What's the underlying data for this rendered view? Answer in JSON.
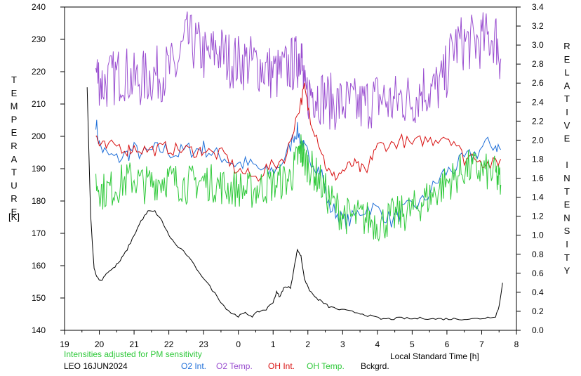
{
  "chart_data": {
    "type": "line",
    "title": "",
    "left_axis_label": "TEMPERATURE",
    "left_axis_unit": "[K]",
    "right_axis_label": "RELATIVE INTENSITY",
    "xlabel": "Local Standard Time [h]",
    "x_ticks": [
      "19",
      "20",
      "21",
      "22",
      "23",
      "0",
      "1",
      "2",
      "3",
      "4",
      "5",
      "6",
      "7",
      "8"
    ],
    "y_left_ticks": [
      140,
      150,
      160,
      170,
      180,
      190,
      200,
      210,
      220,
      230,
      240
    ],
    "y_right_ticks": [
      "0.0",
      "0.2",
      "0.4",
      "0.6",
      "0.8",
      "1.0",
      "1.2",
      "1.4",
      "1.6",
      "1.8",
      "2.0",
      "2.2",
      "2.4",
      "2.6",
      "2.8",
      "3.0",
      "3.2",
      "3.4"
    ],
    "ylim_left": [
      140,
      240
    ],
    "ylim_right": [
      0,
      3.4
    ],
    "xlim_hours_after_19": [
      0,
      13
    ],
    "note": "Intensities adjusted for PM sensitivity",
    "station": "LEO 16JUN2024",
    "series": [
      {
        "name": "O2 Int.",
        "axis": "right",
        "color": "#1f6fd8",
        "x": [
          19.9,
          20.0,
          20.2,
          20.5,
          20.8,
          21.0,
          21.3,
          21.6,
          21.9,
          22.2,
          22.5,
          22.8,
          23.0,
          23.3,
          23.6,
          23.9,
          0.2,
          0.5,
          0.8,
          1.1,
          1.4,
          1.6,
          1.7,
          1.8,
          1.9,
          2.0,
          2.2,
          2.4,
          2.6,
          2.8,
          3.0,
          3.2,
          3.5,
          3.8,
          4.1,
          4.4,
          4.7,
          5.0,
          5.3,
          5.6,
          5.9,
          6.2,
          6.5,
          6.8,
          7.1,
          7.4,
          7.55
        ],
        "y": [
          2.2,
          1.95,
          1.85,
          1.8,
          1.85,
          1.9,
          1.85,
          1.9,
          1.9,
          1.85,
          1.9,
          1.9,
          1.92,
          1.85,
          1.82,
          1.75,
          1.75,
          1.72,
          1.65,
          1.7,
          1.85,
          2.05,
          2.1,
          2.0,
          1.9,
          1.85,
          1.75,
          1.65,
          1.3,
          1.25,
          1.15,
          1.15,
          1.25,
          1.3,
          1.25,
          1.15,
          1.25,
          1.3,
          1.35,
          1.5,
          1.65,
          1.7,
          1.8,
          1.85,
          1.95,
          1.95,
          1.9
        ]
      },
      {
        "name": "O2 Temp.",
        "axis": "left",
        "color": "#9a4fd0",
        "x": [
          19.9,
          20.1,
          20.4,
          20.7,
          21.0,
          21.3,
          21.6,
          21.9,
          22.2,
          22.5,
          22.8,
          23.1,
          23.4,
          23.7,
          0.0,
          0.3,
          0.6,
          0.9,
          1.2,
          1.5,
          1.7,
          1.8,
          1.9,
          2.1,
          2.3,
          2.6,
          2.9,
          3.2,
          3.5,
          3.8,
          4.1,
          4.4,
          4.7,
          5.0,
          5.3,
          5.6,
          5.9,
          6.2,
          6.5,
          6.8,
          7.1,
          7.4,
          7.55
        ],
        "y": [
          220,
          216,
          218,
          220,
          217,
          218,
          219,
          220,
          221,
          230,
          228,
          224,
          227,
          224,
          223,
          223,
          222,
          220,
          219,
          222,
          223,
          228,
          212,
          214,
          213,
          211,
          210,
          210,
          209,
          211,
          212,
          210,
          212,
          211,
          215,
          214,
          217,
          228,
          229,
          229,
          230,
          231,
          224
        ]
      },
      {
        "name": "OH Int.",
        "axis": "right",
        "color": "#d81010",
        "x": [
          19.9,
          20.0,
          20.2,
          20.5,
          20.8,
          21.0,
          21.3,
          21.6,
          21.9,
          22.2,
          22.5,
          22.8,
          23.0,
          23.3,
          23.6,
          23.9,
          0.2,
          0.5,
          0.8,
          1.1,
          1.4,
          1.6,
          1.8,
          1.9,
          2.0,
          2.1,
          2.3,
          2.5,
          2.7,
          2.9,
          3.1,
          3.3,
          3.5,
          3.7,
          3.9,
          4.1,
          4.4,
          4.7,
          5.0,
          5.3,
          5.6,
          5.9,
          6.2,
          6.5,
          6.8,
          7.1,
          7.4,
          7.55
        ],
        "y": [
          2.05,
          1.95,
          1.92,
          1.95,
          1.9,
          1.92,
          1.9,
          1.9,
          1.92,
          1.9,
          1.9,
          1.88,
          1.9,
          1.85,
          1.85,
          1.7,
          1.65,
          1.6,
          1.7,
          1.75,
          1.85,
          2.15,
          2.4,
          2.55,
          2.35,
          2.2,
          2.0,
          1.75,
          1.6,
          1.65,
          1.7,
          1.75,
          1.7,
          1.65,
          1.9,
          1.95,
          1.95,
          2.0,
          1.95,
          2.0,
          2.0,
          2.05,
          2.0,
          1.8,
          1.85,
          1.75,
          1.75,
          1.8
        ]
      },
      {
        "name": "OH Temp.",
        "axis": "left",
        "color": "#2fc93a",
        "x": [
          19.9,
          20.1,
          20.4,
          20.7,
          21.0,
          21.3,
          21.6,
          21.9,
          22.2,
          22.5,
          22.8,
          23.1,
          23.4,
          23.7,
          0.0,
          0.3,
          0.6,
          0.9,
          1.2,
          1.5,
          1.7,
          1.8,
          1.9,
          2.1,
          2.3,
          2.6,
          2.9,
          3.2,
          3.5,
          3.8,
          4.1,
          4.4,
          4.7,
          5.0,
          5.3,
          5.6,
          5.9,
          6.2,
          6.5,
          6.8,
          7.1,
          7.4,
          7.55
        ],
        "y": [
          186,
          183,
          184,
          186,
          187,
          185,
          186,
          187,
          186,
          185,
          186,
          186,
          185,
          184,
          184,
          183,
          184,
          185,
          186,
          187,
          193,
          196,
          193,
          190,
          187,
          181,
          177,
          175,
          175,
          174,
          173,
          175,
          176,
          177,
          180,
          182,
          185,
          187,
          190,
          190,
          189,
          188,
          185
        ]
      },
      {
        "name": "Bckgrd.",
        "axis": "right",
        "color": "#000000",
        "x": [
          19.65,
          19.75,
          19.85,
          19.95,
          20.05,
          20.2,
          20.4,
          20.6,
          20.8,
          21.0,
          21.2,
          21.4,
          21.6,
          21.8,
          22.0,
          22.2,
          22.5,
          22.8,
          23.1,
          23.4,
          23.6,
          23.8,
          0.0,
          0.2,
          0.4,
          0.6,
          0.8,
          1.0,
          1.1,
          1.2,
          1.3,
          1.5,
          1.6,
          1.7,
          1.8,
          1.9,
          2.0,
          2.2,
          2.4,
          2.6,
          2.9,
          3.2,
          3.5,
          3.8,
          4.1,
          4.4,
          4.7,
          5.0,
          5.3,
          5.6,
          5.9,
          6.2,
          6.5,
          6.8,
          7.1,
          7.4,
          7.5,
          7.6
        ],
        "y": [
          2.55,
          1.2,
          0.65,
          0.55,
          0.52,
          0.6,
          0.65,
          0.73,
          0.85,
          1.0,
          1.15,
          1.25,
          1.25,
          1.15,
          1.0,
          0.9,
          0.8,
          0.65,
          0.5,
          0.35,
          0.25,
          0.18,
          0.15,
          0.18,
          0.15,
          0.2,
          0.22,
          0.3,
          0.4,
          0.35,
          0.45,
          0.45,
          0.65,
          0.85,
          0.78,
          0.55,
          0.45,
          0.35,
          0.3,
          0.25,
          0.22,
          0.2,
          0.18,
          0.15,
          0.12,
          0.12,
          0.13,
          0.12,
          0.13,
          0.12,
          0.12,
          0.12,
          0.12,
          0.12,
          0.13,
          0.15,
          0.25,
          0.5
        ]
      }
    ]
  },
  "footer": {
    "note": "Intensities adjusted for PM sensitivity",
    "station": "LEO 16JUN2024",
    "legend": [
      {
        "label": "O2 Int.",
        "color": "#1f6fd8"
      },
      {
        "label": "O2 Temp.",
        "color": "#9a4fd0"
      },
      {
        "label": "OH Int.",
        "color": "#d81010"
      },
      {
        "label": "OH Temp.",
        "color": "#2fc93a"
      },
      {
        "label": "Bckgrd.",
        "color": "#000000"
      }
    ]
  }
}
